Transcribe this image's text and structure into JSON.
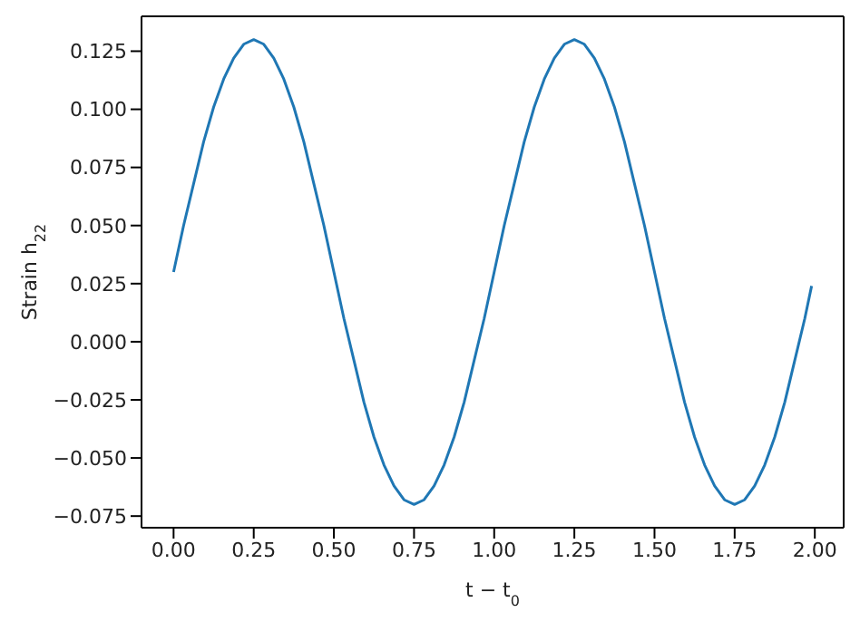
{
  "chart_data": {
    "type": "line",
    "xlabel": "t − t$_{0}$",
    "ylabel": "Strain h$_{22}$",
    "x": [
      0,
      0.03125,
      0.0625,
      0.09375,
      0.125,
      0.15625,
      0.1875,
      0.21875,
      0.25,
      0.28125,
      0.3125,
      0.34375,
      0.375,
      0.40625,
      0.4375,
      0.46875,
      0.5,
      0.53125,
      0.5625,
      0.59375,
      0.625,
      0.65625,
      0.6875,
      0.71875,
      0.75,
      0.78125,
      0.8125,
      0.84375,
      0.875,
      0.90625,
      0.9375,
      0.96875,
      1,
      1.03125,
      1.0625,
      1.09375,
      1.125,
      1.15625,
      1.1875,
      1.21875,
      1.25,
      1.28125,
      1.3125,
      1.34375,
      1.375,
      1.40625,
      1.4375,
      1.46875,
      1.5,
      1.53125,
      1.5625,
      1.59375,
      1.625,
      1.65625,
      1.6875,
      1.71875,
      1.75,
      1.78125,
      1.8125,
      1.84375,
      1.875,
      1.90625,
      1.9375,
      1.96875,
      1.99
    ],
    "series": [
      {
        "color": "#1f77b4",
        "values": [
          0.03,
          0.05,
          0.068,
          0.086,
          0.101,
          0.113,
          0.122,
          0.128,
          0.13,
          0.128,
          0.122,
          0.113,
          0.101,
          0.086,
          0.068,
          0.05,
          0.03,
          0.01,
          -0.008,
          -0.026,
          -0.041,
          -0.053,
          -0.062,
          -0.068,
          -0.07,
          -0.068,
          -0.062,
          -0.053,
          -0.041,
          -0.026,
          -0.008,
          0.01,
          0.03,
          0.05,
          0.068,
          0.086,
          0.101,
          0.113,
          0.122,
          0.128,
          0.13,
          0.128,
          0.122,
          0.113,
          0.101,
          0.086,
          0.068,
          0.05,
          0.03,
          0.01,
          -0.008,
          -0.026,
          -0.041,
          -0.053,
          -0.062,
          -0.068,
          -0.07,
          -0.068,
          -0.062,
          -0.053,
          -0.041,
          -0.026,
          -0.008,
          0.01,
          0.024
        ]
      }
    ],
    "xlim": [
      -0.1,
      2.09
    ],
    "ylim": [
      -0.08,
      0.14
    ],
    "xticks": [
      {
        "value": 0,
        "label": "0.00"
      },
      {
        "value": 0.25,
        "label": "0.25"
      },
      {
        "value": 0.5,
        "label": "0.50"
      },
      {
        "value": 0.75,
        "label": "0.75"
      },
      {
        "value": 1,
        "label": "1.00"
      },
      {
        "value": 1.25,
        "label": "1.25"
      },
      {
        "value": 1.5,
        "label": "1.50"
      },
      {
        "value": 1.75,
        "label": "1.75"
      },
      {
        "value": 2,
        "label": "2.00"
      }
    ],
    "yticks": [
      {
        "value": -0.075,
        "label": "−0.075"
      },
      {
        "value": -0.05,
        "label": "−0.050"
      },
      {
        "value": -0.025,
        "label": "−0.025"
      },
      {
        "value": 0,
        "label": "0.000"
      },
      {
        "value": 0.025,
        "label": "0.025"
      },
      {
        "value": 0.05,
        "label": "0.050"
      },
      {
        "value": 0.075,
        "label": "0.075"
      },
      {
        "value": 0.1,
        "label": "0.100"
      },
      {
        "value": 0.125,
        "label": "0.125"
      }
    ],
    "marker": "none",
    "line_style": "solid"
  }
}
